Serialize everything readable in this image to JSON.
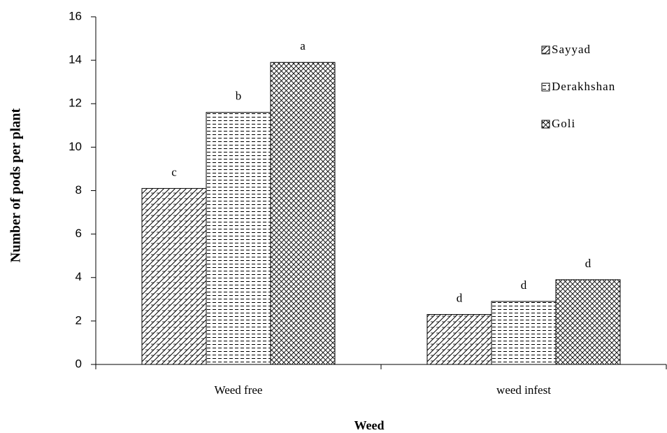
{
  "chart_data": {
    "type": "bar",
    "x_label": "Weed",
    "y_label": "Number of pods per plant",
    "categories": [
      "Weed free",
      "weed infest"
    ],
    "series": [
      {
        "name": "Sayyad",
        "color": "#000000",
        "pattern": "brick",
        "values": [
          8.1,
          2.3
        ],
        "annotations": [
          "c",
          "d"
        ]
      },
      {
        "name": "Derakhshan",
        "color": "#000000",
        "pattern": "dash",
        "values": [
          11.6,
          2.9
        ],
        "annotations": [
          "b",
          "d"
        ]
      },
      {
        "name": "Goli",
        "color": "#000000",
        "pattern": "cross",
        "values": [
          13.9,
          3.9
        ],
        "annotations": [
          "a",
          "d"
        ]
      }
    ],
    "ylim": [
      0,
      16
    ],
    "yticks": [
      0,
      2,
      4,
      6,
      8,
      10,
      12,
      14,
      16
    ],
    "grid": false,
    "legend": "upper right"
  }
}
